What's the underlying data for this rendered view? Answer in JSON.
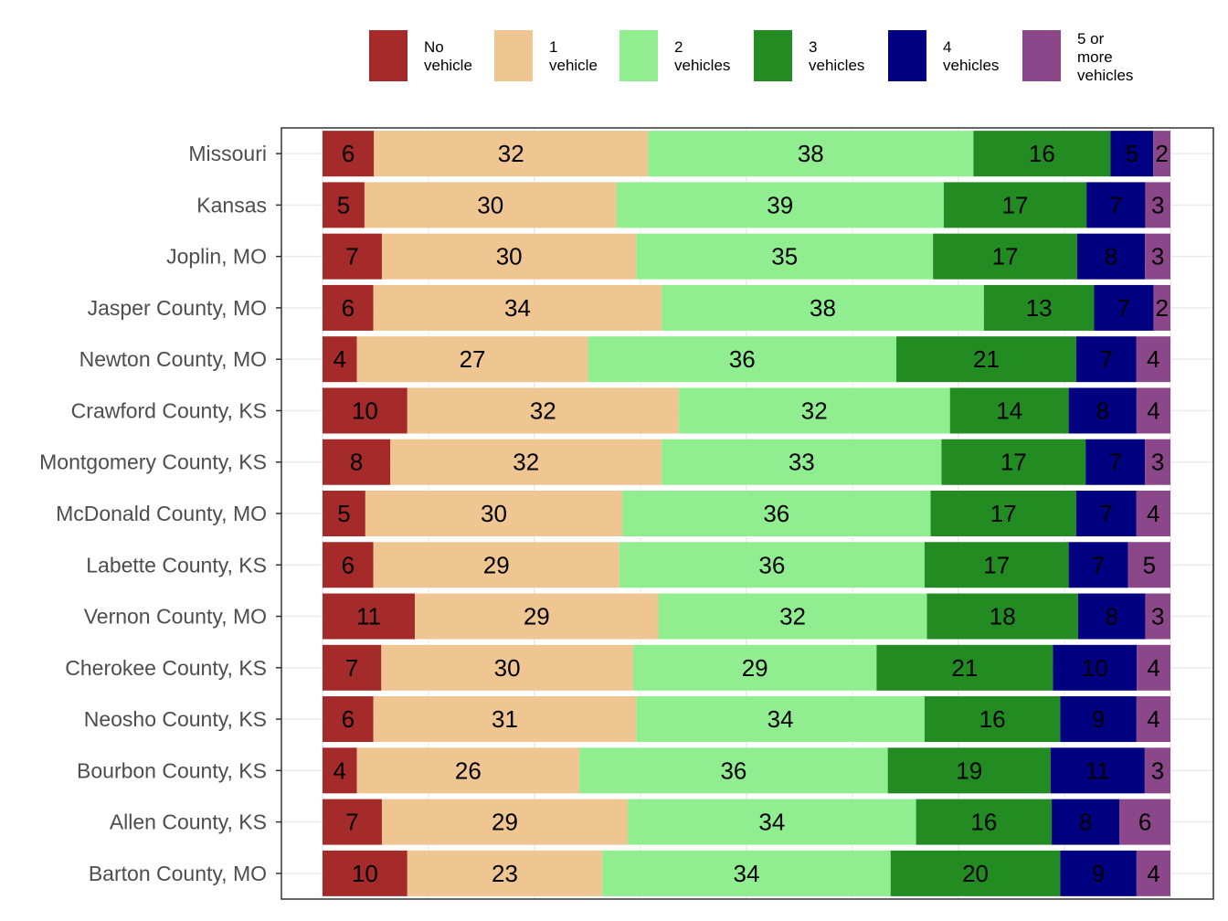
{
  "chart_data": {
    "type": "bar",
    "orientation": "horizontal",
    "stacked": true,
    "normalized": true,
    "title": "",
    "xlabel": "",
    "ylabel": "",
    "xlim": [
      0,
      1
    ],
    "grid": true,
    "legend_position": "top",
    "categories": [
      "Missouri",
      "Kansas",
      "Joplin, MO",
      "Jasper County, MO",
      "Newton County, MO",
      "Crawford County, KS",
      "Montgomery County, KS",
      "McDonald County, MO",
      "Labette County, KS",
      "Vernon County, MO",
      "Cherokee County, KS",
      "Neosho County, KS",
      "Bourbon County, KS",
      "Allen County, KS",
      "Barton County, MO"
    ],
    "series": [
      {
        "name": "No\nvehicle",
        "color": "#A52A2A",
        "values": [
          6,
          5,
          7,
          6,
          4,
          10,
          8,
          5,
          6,
          11,
          7,
          6,
          4,
          7,
          10
        ]
      },
      {
        "name": "1\nvehicle",
        "color": "#EFC591",
        "values": [
          32,
          30,
          30,
          34,
          27,
          32,
          32,
          30,
          29,
          29,
          30,
          31,
          26,
          29,
          23
        ]
      },
      {
        "name": "2\nvehicles",
        "color": "#90EE90",
        "values": [
          38,
          39,
          35,
          38,
          36,
          32,
          33,
          36,
          36,
          32,
          29,
          34,
          36,
          34,
          34
        ]
      },
      {
        "name": "3\nvehicles",
        "color": "#228B22",
        "values": [
          16,
          17,
          17,
          13,
          21,
          14,
          17,
          17,
          17,
          18,
          21,
          16,
          19,
          16,
          20
        ]
      },
      {
        "name": "4\nvehicles",
        "color": "#000080",
        "values": [
          5,
          7,
          8,
          7,
          7,
          8,
          7,
          7,
          7,
          8,
          10,
          9,
          11,
          8,
          9
        ]
      },
      {
        "name": "5 or\nmore\nvehicles",
        "color": "#8B4789",
        "values": [
          2,
          3,
          3,
          2,
          4,
          4,
          3,
          4,
          5,
          3,
          4,
          4,
          3,
          6,
          4
        ]
      }
    ]
  }
}
